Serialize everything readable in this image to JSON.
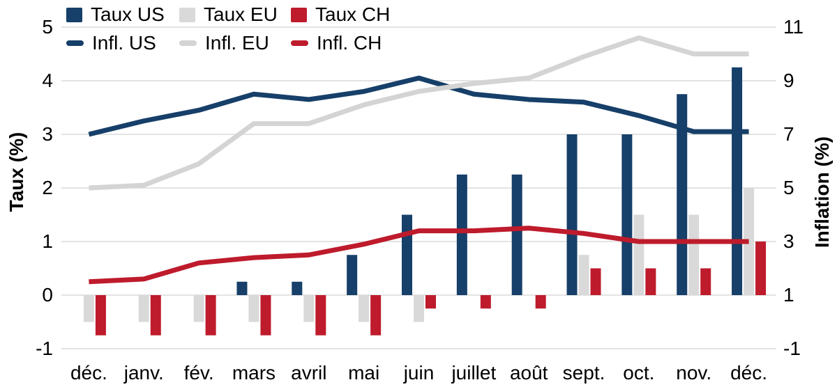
{
  "chart_data": {
    "type": "combo-bar-line",
    "categories": [
      "déc.",
      "janv.",
      "fév.",
      "mars",
      "avril",
      "mai",
      "juin",
      "juillet",
      "août",
      "sept.",
      "oct.",
      "nov.",
      "déc."
    ],
    "bar_series": [
      {
        "name": "Taux US",
        "axis": "left",
        "color": "#163f69",
        "values": [
          0,
          0,
          0,
          0.25,
          0.25,
          0.75,
          1.5,
          2.25,
          2.25,
          3.0,
          3.0,
          3.75,
          4.25
        ]
      },
      {
        "name": "Taux EU",
        "axis": "left",
        "color": "#d9d9d9",
        "values": [
          -0.5,
          -0.5,
          -0.5,
          -0.5,
          -0.5,
          -0.5,
          -0.5,
          0,
          0,
          0.75,
          1.5,
          1.5,
          2.0
        ]
      },
      {
        "name": "Taux CH",
        "axis": "left",
        "color": "#be1b2c",
        "values": [
          -0.75,
          -0.75,
          -0.75,
          -0.75,
          -0.75,
          -0.75,
          -0.25,
          -0.25,
          -0.25,
          0.5,
          0.5,
          0.5,
          1.0
        ]
      }
    ],
    "line_series": [
      {
        "name": "Infl. US",
        "axis": "right",
        "color": "#163f69",
        "values": [
          7.0,
          7.5,
          7.9,
          8.5,
          8.3,
          8.6,
          9.1,
          8.5,
          8.3,
          8.2,
          7.7,
          7.1,
          7.1
        ]
      },
      {
        "name": "Infl. EU",
        "axis": "right",
        "color": "#d4d4d4",
        "values": [
          5.0,
          5.1,
          5.9,
          7.4,
          7.4,
          8.1,
          8.6,
          8.9,
          9.1,
          9.9,
          10.6,
          10.0,
          10.0
        ]
      },
      {
        "name": "Infl. CH",
        "axis": "right",
        "color": "#be1b2c",
        "values": [
          1.5,
          1.6,
          2.2,
          2.4,
          2.5,
          2.9,
          3.4,
          3.4,
          3.5,
          3.3,
          3.0,
          3.0,
          3.0
        ]
      }
    ],
    "ylabel_left": "Taux (%)",
    "ylabel_right": "Inflation (%)",
    "left_ticks": [
      "5",
      "4",
      "3",
      "2",
      "1",
      "0",
      "-1"
    ],
    "right_ticks": [
      "11",
      "9",
      "7",
      "5",
      "3",
      "1",
      "-1"
    ],
    "left_range": [
      -1,
      5
    ],
    "right_range": [
      -1,
      11
    ],
    "grid": true,
    "gridline_color": "#dadada",
    "legend_position": "top-left"
  }
}
